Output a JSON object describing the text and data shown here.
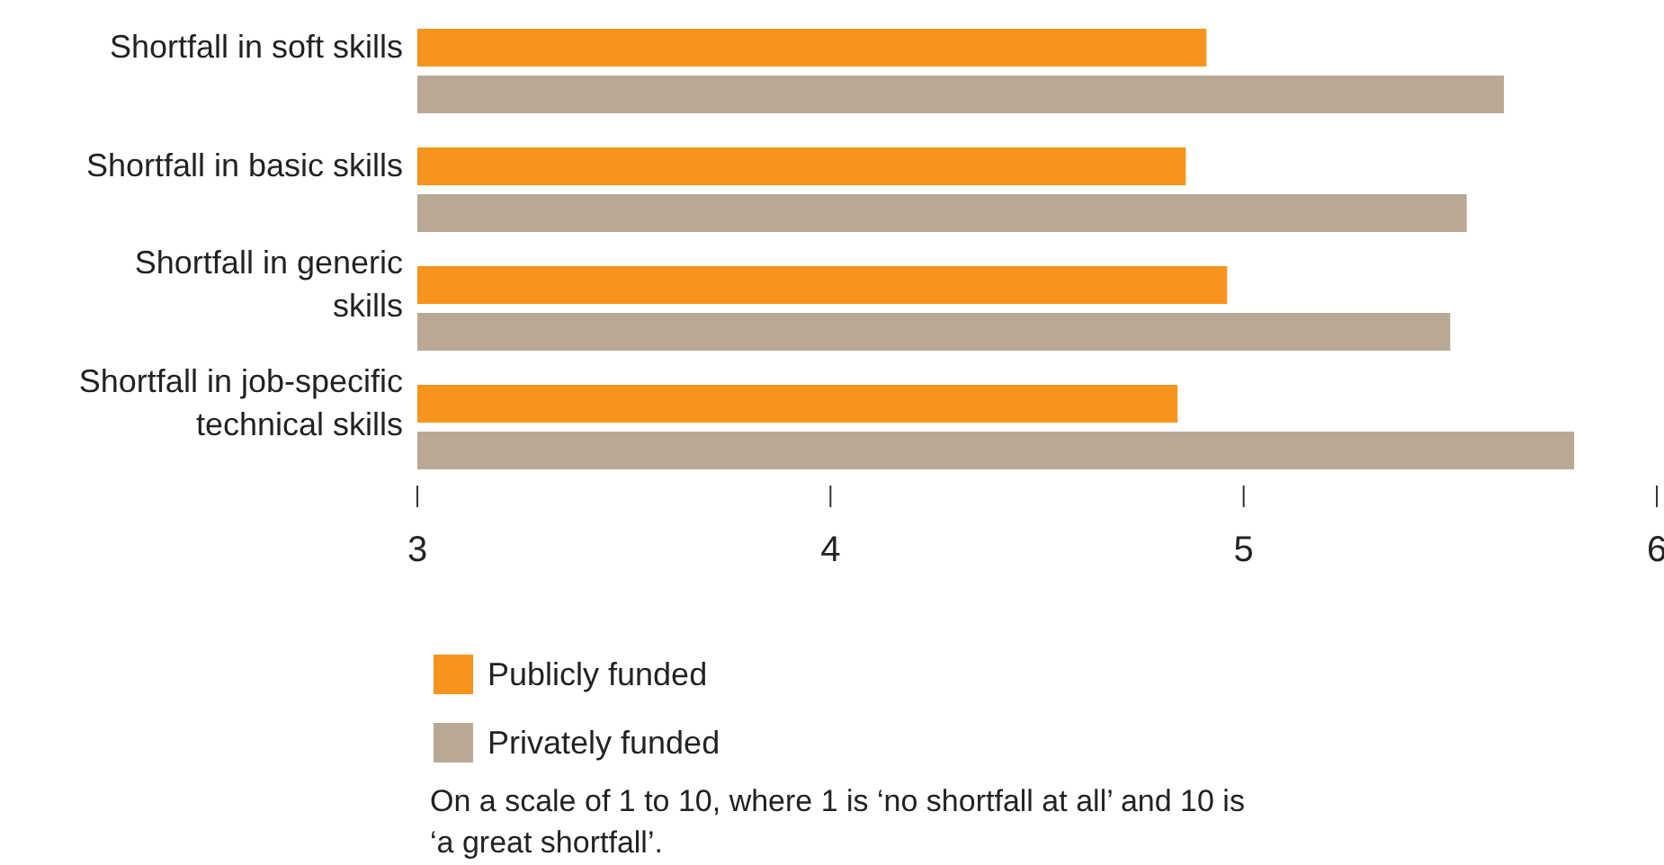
{
  "chart_data": {
    "type": "bar",
    "orientation": "horizontal",
    "categories": [
      "Shortfall in soft skills",
      "Shortfall in basic skills",
      "Shortfall in generic skills",
      "Shortfall in job-specific technical skills"
    ],
    "series": [
      {
        "name": "Publicly funded",
        "color": "#f7941d",
        "values": [
          4.91,
          4.86,
          4.96,
          4.84
        ]
      },
      {
        "name": "Privately funded",
        "color": "#b9a994",
        "values": [
          5.63,
          5.54,
          5.5,
          5.8
        ]
      }
    ],
    "xlim": [
      3,
      6
    ],
    "xticks": [
      3,
      4,
      5,
      6
    ],
    "legend": "bottom",
    "annotations": [
      "On a scale of 1 to 10, where 1 is ‘no shortfall at all’ and 10 is ‘a great shortfall’."
    ]
  }
}
